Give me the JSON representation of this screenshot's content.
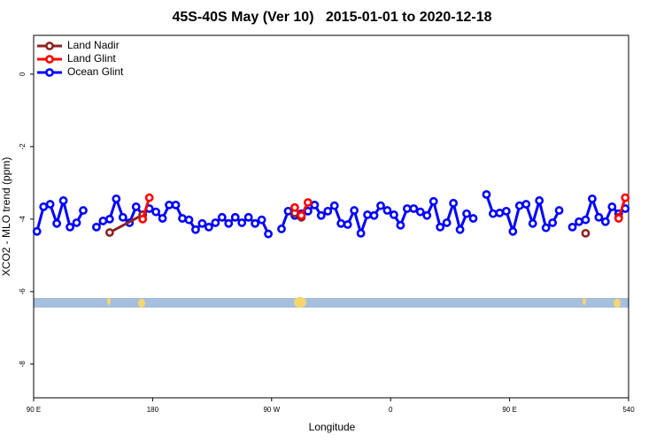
{
  "chart_data": {
    "type": "line",
    "title": "45S-40S May (Ver 10)   2015-01-01 to 2020-12-18",
    "x_label": "Longitude",
    "y_label": "XCO2 - MLO trend (ppm)",
    "xlim": [
      90,
      540
    ],
    "xticks": [
      {
        "value": 90,
        "label": "90 E"
      },
      180,
      {
        "value": 270,
        "label": "90 W"
      },
      {
        "value": 360,
        "label": "0"
      },
      {
        "value": 450,
        "label": "90 E"
      },
      540
    ],
    "ylim": [
      -8.93,
      1.07
    ],
    "yticks": [
      0,
      -2,
      -4,
      -6,
      -8
    ],
    "legend": "top-left",
    "series": [
      {
        "name": "Land Nadir",
        "color": "#8b2323",
        "x": [
          147.5,
          172.5,
          230,
          287.5,
          292.5,
          400,
          507.5,
          520,
          532.5
        ],
        "values": [
          -4.37,
          -3.88,
          null,
          -3.83,
          -3.95,
          null,
          -4.39,
          null,
          -3.95
        ]
      },
      {
        "name": "Land Glint",
        "color": "#ff0000",
        "x": [
          172.5,
          177.5,
          230,
          287.5,
          292.5,
          297.5,
          400,
          532.5,
          537.5
        ],
        "values": [
          -4.0,
          -3.41,
          null,
          -3.68,
          -3.9,
          -3.54,
          null,
          -3.98,
          -3.41
        ]
      },
      {
        "name": "Ocean Glint",
        "color": "#0000ff",
        "x": [
          92.5,
          97.5,
          102.5,
          107.5,
          112.5,
          117.5,
          122.5,
          127.5,
          132.5,
          137.5,
          142.5,
          147.5,
          152.5,
          157.5,
          162.5,
          167.5,
          172.5,
          177.5,
          182.5,
          187.5,
          192.5,
          197.5,
          202.5,
          207.5,
          212.5,
          217.5,
          222.5,
          227.5,
          232.5,
          237.5,
          242.5,
          247.5,
          252.5,
          257.5,
          262.5,
          267.5,
          272.5,
          277.5,
          282.5,
          287.5,
          292.5,
          297.5,
          302.5,
          307.5,
          312.5,
          317.5,
          322.5,
          327.5,
          332.5,
          337.5,
          342.5,
          347.5,
          352.5,
          357.5,
          362.5,
          367.5,
          372.5,
          377.5,
          382.5,
          387.5,
          392.5,
          397.5,
          402.5,
          407.5,
          412.5,
          417.5,
          422.5,
          427.5,
          432.5,
          437.5,
          442.5,
          447.5,
          452.5,
          457.5,
          462.5,
          467.5,
          472.5,
          477.5,
          482.5,
          487.5,
          492.5,
          497.5,
          502.5,
          507.5,
          512.5,
          517.5,
          522.5,
          527.5,
          532.5,
          537.5
        ],
        "values": [
          -4.34,
          -3.66,
          -3.59,
          -4.12,
          -3.49,
          -4.22,
          -4.1,
          -3.76,
          null,
          -4.22,
          -4.05,
          -4.0,
          -3.44,
          -3.95,
          -4.1,
          -3.66,
          -3.88,
          -3.71,
          -3.8,
          -3.98,
          -3.61,
          -3.61,
          -3.98,
          -4.02,
          -4.29,
          -4.12,
          -4.22,
          -4.1,
          -3.95,
          -4.12,
          -3.95,
          -4.1,
          -3.95,
          -4.12,
          -4.02,
          -4.41,
          null,
          -4.27,
          -3.78,
          -3.9,
          -3.85,
          -3.78,
          -3.61,
          -3.9,
          -3.78,
          -3.63,
          -4.12,
          -4.15,
          -3.76,
          -4.39,
          -3.88,
          -3.9,
          -3.63,
          -3.76,
          -3.88,
          -4.17,
          -3.71,
          -3.71,
          -3.8,
          -3.9,
          -3.51,
          -4.22,
          -4.1,
          -3.56,
          -4.29,
          -3.85,
          -3.98,
          null,
          -3.32,
          -3.85,
          -3.83,
          -3.78,
          -4.34,
          -3.63,
          -3.59,
          -4.12,
          -3.49,
          -4.24,
          -4.1,
          -3.76,
          null,
          -4.22,
          -4.07,
          -4.02,
          -3.44,
          -3.95,
          -4.07,
          -3.66,
          -3.85,
          -3.71
        ]
      }
    ]
  }
}
